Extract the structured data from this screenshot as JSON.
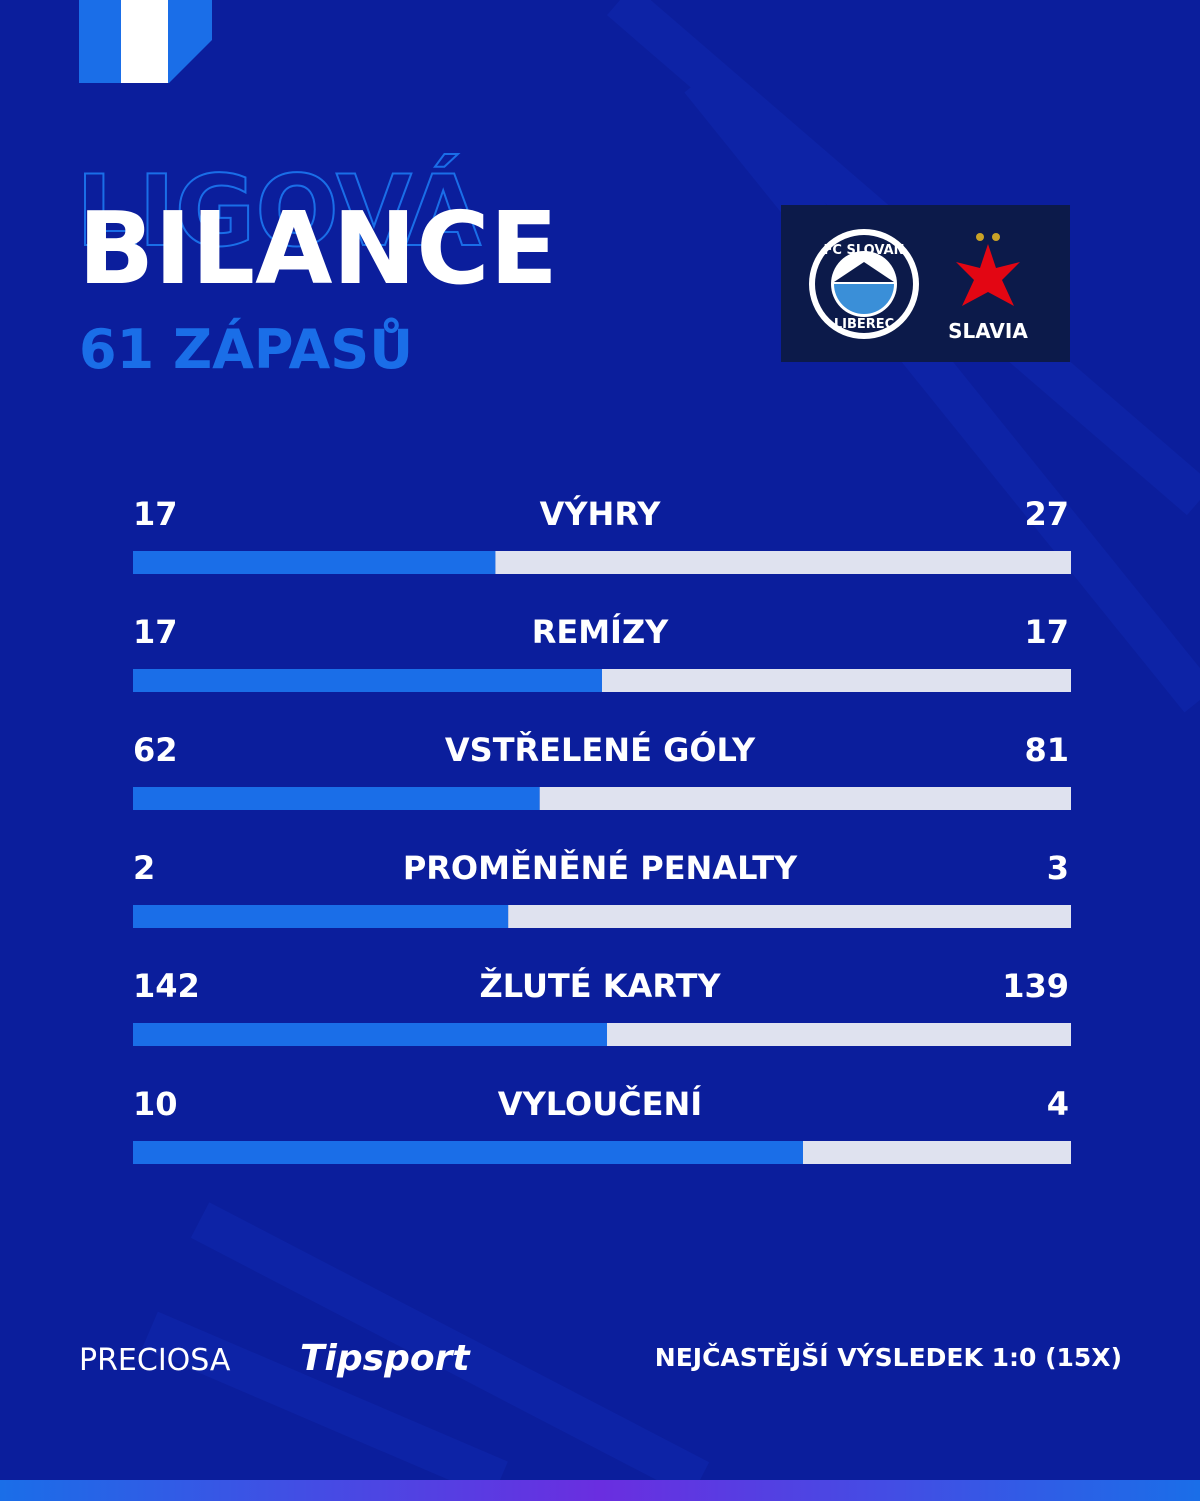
{
  "chart_data": {
    "type": "comparison",
    "kicker": "LIGOVÁ",
    "title": "BILANCE",
    "subtitle": "61 ZÁPASŮ",
    "logos": {
      "home_top": "FC SLOVAN",
      "home_bottom": "LIBEREC",
      "away": "SLAVIA"
    },
    "categories": [
      "VÝHRY",
      "REMÍZY",
      "VSTŘELENÉ GÓLY",
      "PROMĚNĚNÉ PENALTY",
      "ŽLUTÉ KARTY",
      "VYLOUČENÍ"
    ],
    "series": [
      {
        "color": "#1a6ee8",
        "values": [
          17,
          17,
          62,
          2,
          142,
          10
        ]
      },
      {
        "color": "#dfe2ef",
        "values": [
          27,
          17,
          81,
          3,
          139,
          4
        ]
      }
    ],
    "sponsors": [
      "PRECIOSA",
      "Tipsport"
    ],
    "note": "NEJČASTĚJŠÍ VÝSLEDEK 1:0 (15X)"
  }
}
